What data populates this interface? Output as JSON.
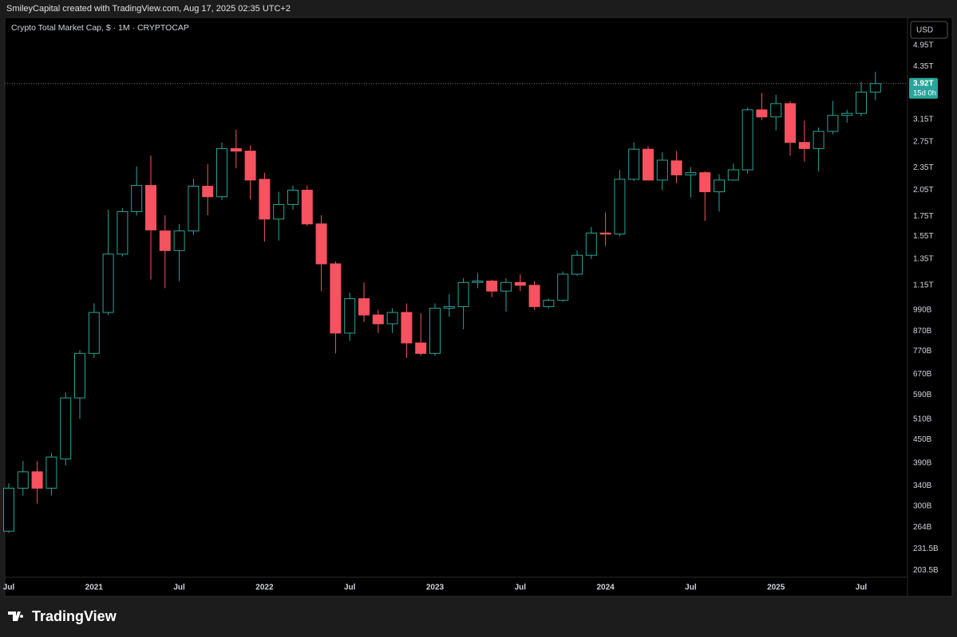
{
  "header": {
    "text": "SmileyCapital created with TradingView.com, Aug 17, 2025 02:35 UTC+2"
  },
  "footer": {
    "brand": "TradingView"
  },
  "chart_data": {
    "type": "candlestick",
    "title": "Crypto Total Market Cap, $ · 1M · CRYPTOCAP",
    "currency": "USD",
    "log_scale": true,
    "grid": false,
    "up_color": "#26a69a",
    "down_color": "#f7525f",
    "categories": [
      "Jul",
      null,
      null,
      null,
      null,
      null,
      "2021",
      null,
      null,
      null,
      null,
      null,
      "Jul",
      null,
      null,
      null,
      null,
      null,
      "2022",
      null,
      null,
      null,
      null,
      null,
      "Jul",
      null,
      null,
      null,
      null,
      null,
      "2023",
      null,
      null,
      null,
      null,
      null,
      "Jul",
      null,
      null,
      null,
      null,
      null,
      "2024",
      null,
      null,
      null,
      null,
      null,
      "Jul",
      null,
      null,
      null,
      null,
      null,
      "2025",
      null,
      null,
      null,
      null,
      null,
      "Jul",
      null
    ],
    "open": [
      258,
      335,
      370,
      335,
      400,
      580,
      760,
      975,
      1390,
      1800,
      2110,
      1600,
      1420,
      1600,
      2100,
      1970,
      2640,
      2600,
      2190,
      1720,
      1880,
      2050,
      1670,
      1310,
      860,
      1060,
      960,
      910,
      975,
      810,
      760,
      1000,
      1010,
      1170,
      1180,
      1110,
      1170,
      1150,
      1010,
      1050,
      1230,
      1380,
      1580,
      1570,
      2190,
      2630,
      2180,
      2450,
      2250,
      2280,
      2030,
      2180,
      2320,
      3340,
      3200,
      3470,
      2740,
      2640,
      2930,
      3230,
      3270,
      3720
    ],
    "high": [
      345,
      395,
      395,
      415,
      600,
      775,
      1030,
      1820,
      1840,
      2370,
      2530,
      1760,
      1670,
      2200,
      2400,
      2740,
      2960,
      2690,
      2280,
      2030,
      2110,
      2110,
      1760,
      1330,
      1100,
      1170,
      990,
      1000,
      1030,
      970,
      1030,
      1090,
      1200,
      1240,
      1190,
      1200,
      1230,
      1180,
      1060,
      1250,
      1420,
      1640,
      1790,
      2320,
      2740,
      2680,
      2580,
      2600,
      2360,
      2300,
      2260,
      2410,
      3390,
      3700,
      3660,
      3520,
      3130,
      3000,
      3530,
      3340,
      3960,
      4210
    ],
    "low": [
      255,
      320,
      305,
      320,
      385,
      510,
      740,
      960,
      1370,
      1760,
      1190,
      1130,
      1180,
      1560,
      1760,
      1930,
      2340,
      1940,
      1500,
      1510,
      1820,
      1650,
      1110,
      760,
      820,
      920,
      860,
      860,
      740,
      750,
      750,
      950,
      880,
      1130,
      1070,
      980,
      1110,
      990,
      1000,
      1040,
      1220,
      1350,
      1460,
      1550,
      2170,
      2170,
      2050,
      2140,
      1960,
      1700,
      1800,
      2170,
      2270,
      3140,
      2950,
      2530,
      2440,
      2300,
      2880,
      3090,
      3210,
      3540
    ],
    "close": [
      335,
      370,
      335,
      405,
      580,
      760,
      975,
      1390,
      1800,
      2110,
      1610,
      1420,
      1600,
      2100,
      1970,
      2640,
      2600,
      2180,
      1720,
      1880,
      2050,
      1670,
      1310,
      860,
      1060,
      960,
      910,
      975,
      810,
      760,
      1000,
      1010,
      1170,
      1180,
      1110,
      1170,
      1150,
      1010,
      1050,
      1230,
      1380,
      1580,
      1570,
      2190,
      2630,
      2180,
      2460,
      2250,
      2280,
      2030,
      2180,
      2320,
      3340,
      3200,
      3470,
      2740,
      2640,
      2930,
      3230,
      3270,
      3720,
      3920
    ],
    "ylim": [
      195,
      5770
    ],
    "yticks": [
      {
        "value": 4950,
        "label": "4.95T"
      },
      {
        "value": 4350,
        "label": "4.35T"
      },
      {
        "value": 3150,
        "label": "3.15T"
      },
      {
        "value": 2750,
        "label": "2.75T"
      },
      {
        "value": 2350,
        "label": "2.35T"
      },
      {
        "value": 2050,
        "label": "2.05T"
      },
      {
        "value": 1750,
        "label": "1.75T"
      },
      {
        "value": 1550,
        "label": "1.55T"
      },
      {
        "value": 1350,
        "label": "1.35T"
      },
      {
        "value": 1150,
        "label": "1.15T"
      },
      {
        "value": 990,
        "label": "990B"
      },
      {
        "value": 870,
        "label": "870B"
      },
      {
        "value": 770,
        "label": "770B"
      },
      {
        "value": 670,
        "label": "670B"
      },
      {
        "value": 590,
        "label": "590B"
      },
      {
        "value": 510,
        "label": "510B"
      },
      {
        "value": 450,
        "label": "450B"
      },
      {
        "value": 390,
        "label": "390B"
      },
      {
        "value": 340,
        "label": "340B"
      },
      {
        "value": 300,
        "label": "300B"
      },
      {
        "value": 264,
        "label": "264B"
      },
      {
        "value": 231.5,
        "label": "231.5B"
      },
      {
        "value": 203.5,
        "label": "203.5B"
      }
    ],
    "last_price": {
      "value": 3920,
      "label": "3.92T"
    },
    "countdown": "15d 0h"
  }
}
